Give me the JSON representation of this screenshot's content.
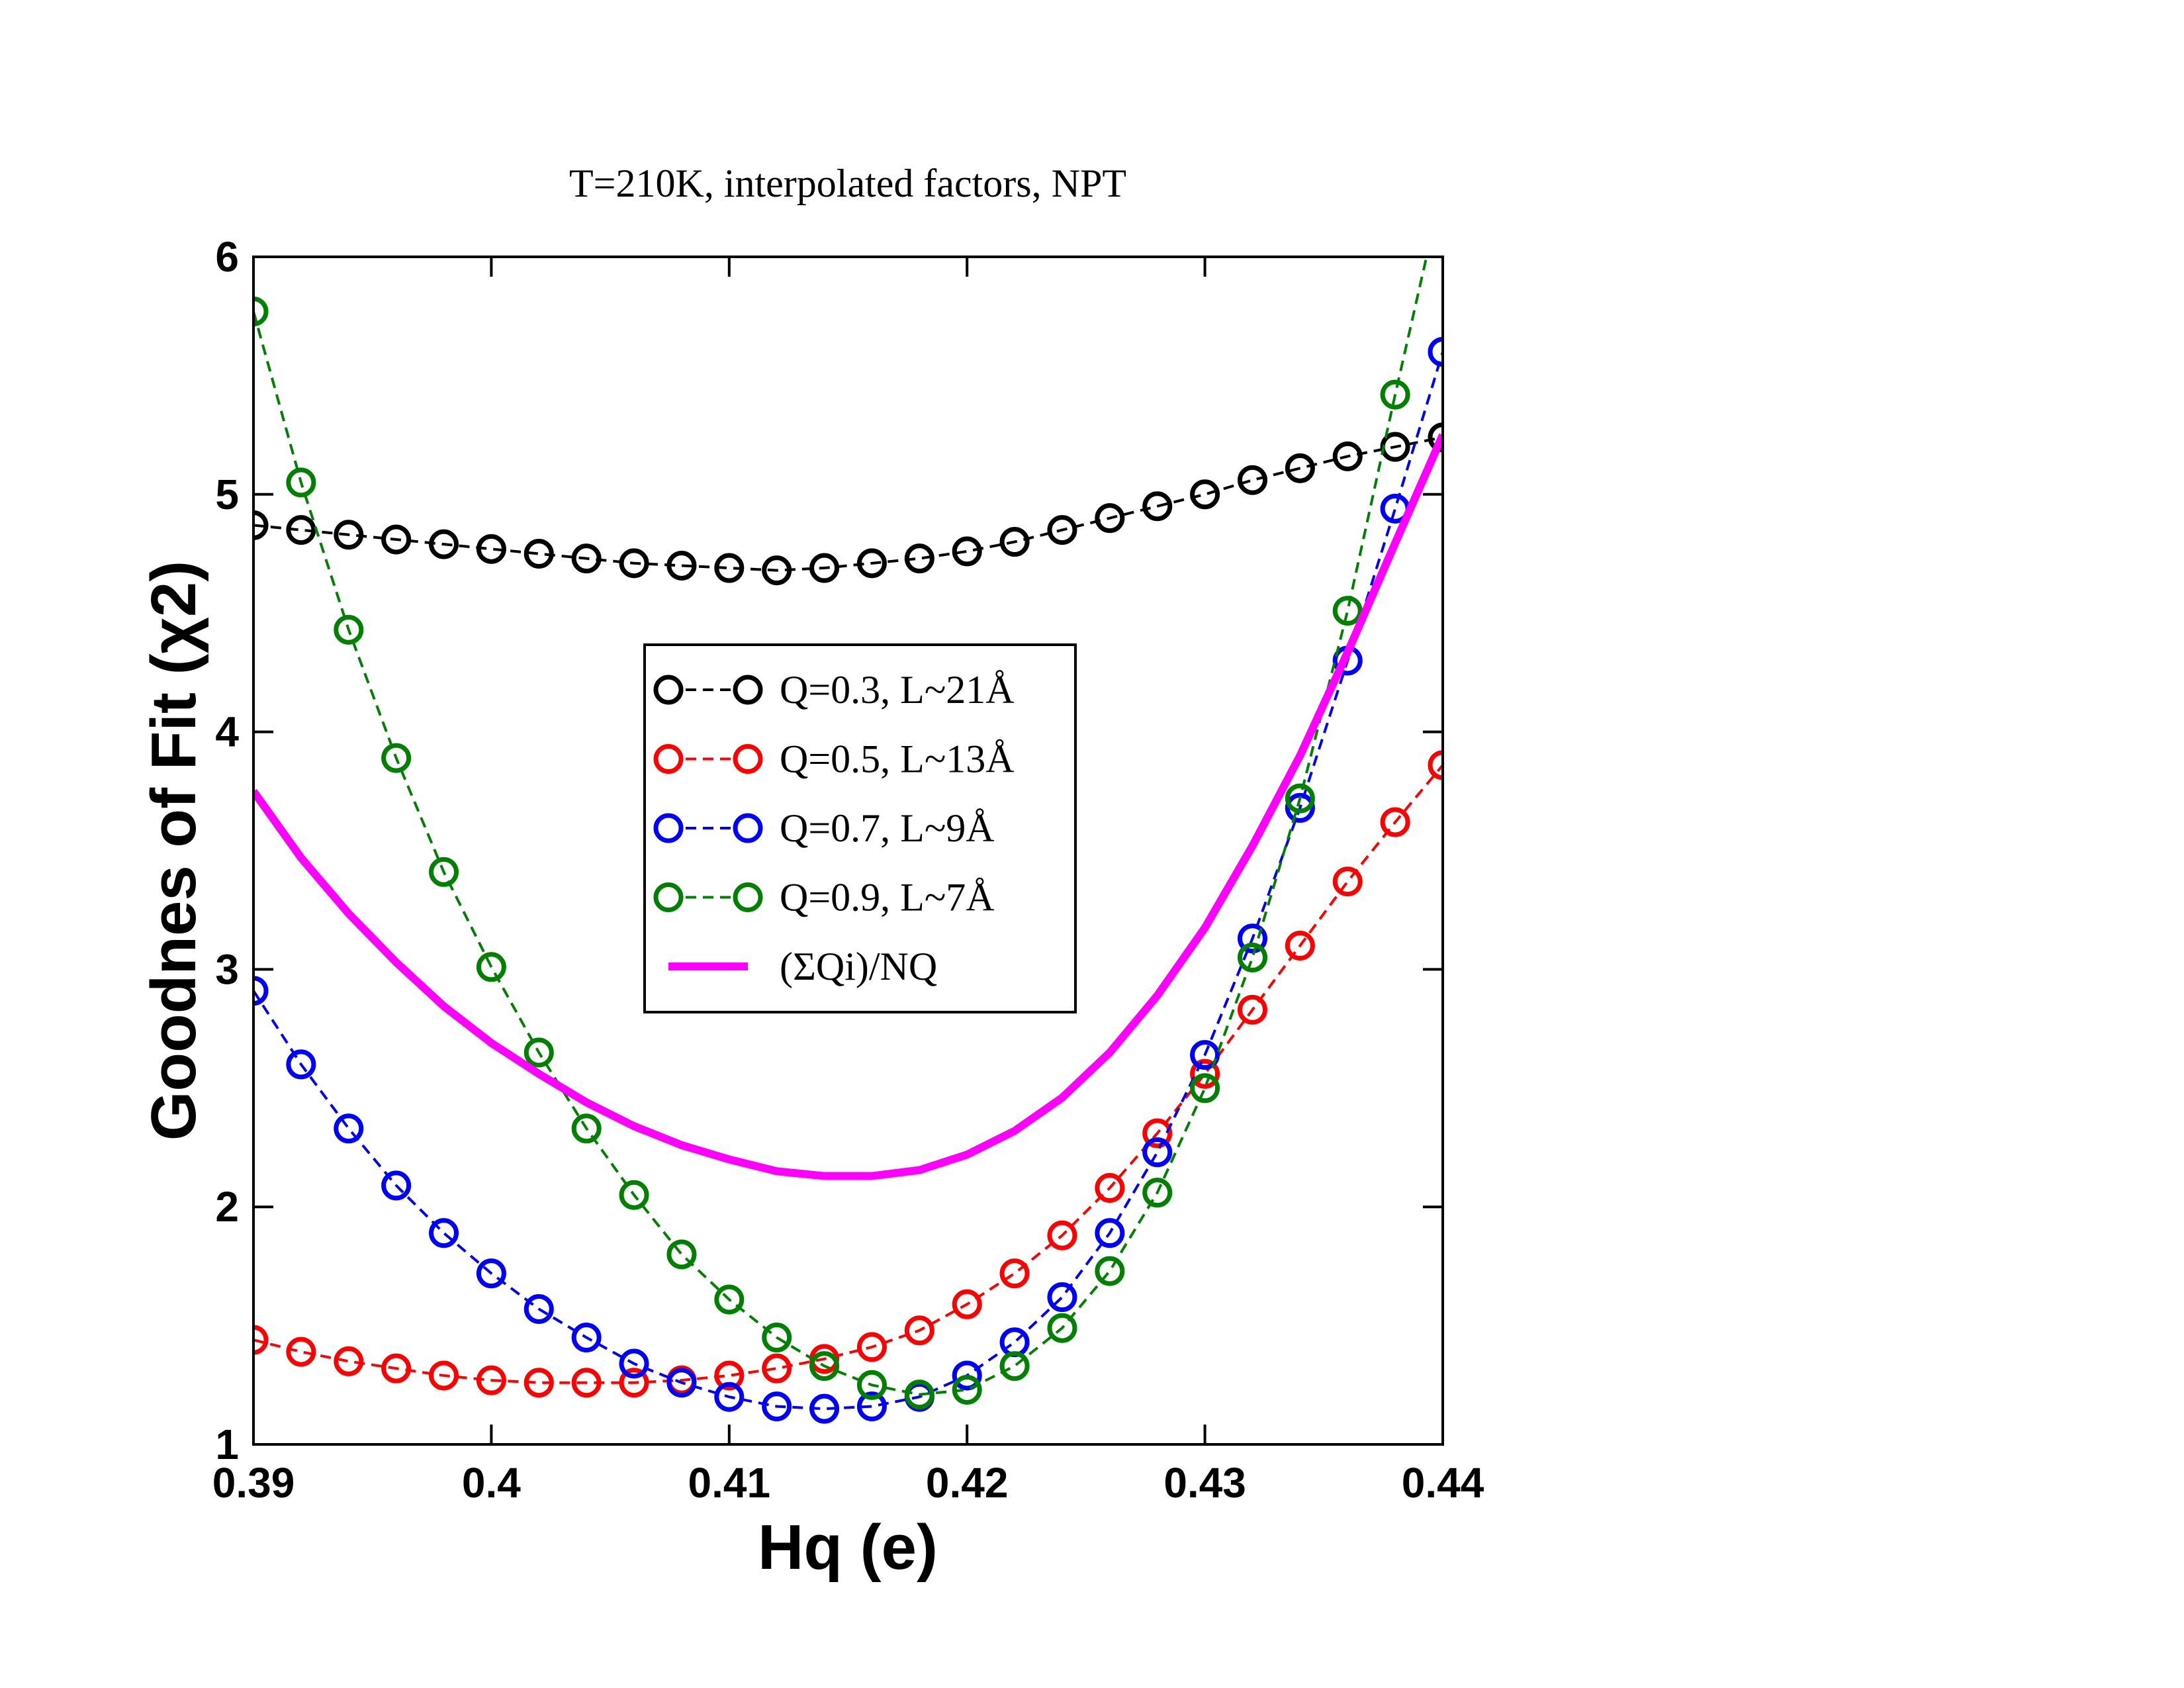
{
  "chart_data": {
    "type": "line",
    "title": "T=210K, interpolated factors, NPT",
    "x_label": "Hq (e)",
    "y_label": "Goodnes of Fit  (χ2)",
    "x": [
      0.39,
      0.392,
      0.394,
      0.396,
      0.398,
      0.4,
      0.402,
      0.404,
      0.406,
      0.408,
      0.41,
      0.412,
      0.414,
      0.416,
      0.418,
      0.42,
      0.422,
      0.424,
      0.426,
      0.428,
      0.43,
      0.432,
      0.434,
      0.436,
      0.438,
      0.44
    ],
    "xlim": [
      0.39,
      0.44
    ],
    "xticks": [
      0.39,
      0.4,
      0.41,
      0.42,
      0.43,
      0.44
    ],
    "ylim": [
      1,
      6
    ],
    "yticks": [
      1,
      2,
      3,
      4,
      5,
      6
    ],
    "legend": "center",
    "series": [
      {
        "name": "Q=0.3, L~21Å",
        "color": "#000000",
        "style": "dashed-circles",
        "values": [
          4.87,
          4.85,
          4.83,
          4.81,
          4.79,
          4.77,
          4.75,
          4.73,
          4.71,
          4.7,
          4.69,
          4.68,
          4.69,
          4.71,
          4.73,
          4.76,
          4.8,
          4.85,
          4.9,
          4.95,
          5.0,
          5.06,
          5.11,
          5.16,
          5.2,
          5.24
        ]
      },
      {
        "name": "Q=0.5, L~13Å",
        "color": "#ff0000",
        "style": "dashed-circles",
        "values": [
          1.44,
          1.39,
          1.35,
          1.32,
          1.29,
          1.27,
          1.26,
          1.26,
          1.26,
          1.27,
          1.29,
          1.32,
          1.36,
          1.41,
          1.48,
          1.59,
          1.72,
          1.88,
          2.08,
          2.31,
          2.56,
          2.83,
          3.1,
          3.37,
          3.62,
          3.86
        ]
      },
      {
        "name": "Q=0.7, L~9Å",
        "color": "#0000ff",
        "style": "dashed-circles",
        "values": [
          2.91,
          2.6,
          2.33,
          2.09,
          1.89,
          1.72,
          1.57,
          1.45,
          1.34,
          1.26,
          1.2,
          1.16,
          1.15,
          1.16,
          1.2,
          1.29,
          1.43,
          1.62,
          1.89,
          2.23,
          2.64,
          3.13,
          3.68,
          4.3,
          4.94,
          5.6
        ]
      },
      {
        "name": "Q=0.9, L~7Å",
        "color": "#008000",
        "style": "dashed-circles",
        "values": [
          5.77,
          5.05,
          4.43,
          3.89,
          3.41,
          3.01,
          2.65,
          2.33,
          2.05,
          1.8,
          1.61,
          1.45,
          1.33,
          1.25,
          1.21,
          1.23,
          1.33,
          1.49,
          1.73,
          2.06,
          2.5,
          3.05,
          3.72,
          4.51,
          5.42,
          6.3
        ]
      },
      {
        "name": "(ΣQi)/NQ",
        "color": "#ff00ff",
        "style": "solid",
        "values": [
          3.75,
          3.47,
          3.235,
          3.03,
          2.845,
          2.69,
          2.56,
          2.44,
          2.34,
          2.26,
          2.2,
          2.15,
          2.13,
          2.13,
          2.155,
          2.22,
          2.32,
          2.46,
          2.65,
          2.89,
          3.175,
          3.52,
          3.9,
          4.335,
          4.795,
          5.25
        ]
      }
    ]
  }
}
